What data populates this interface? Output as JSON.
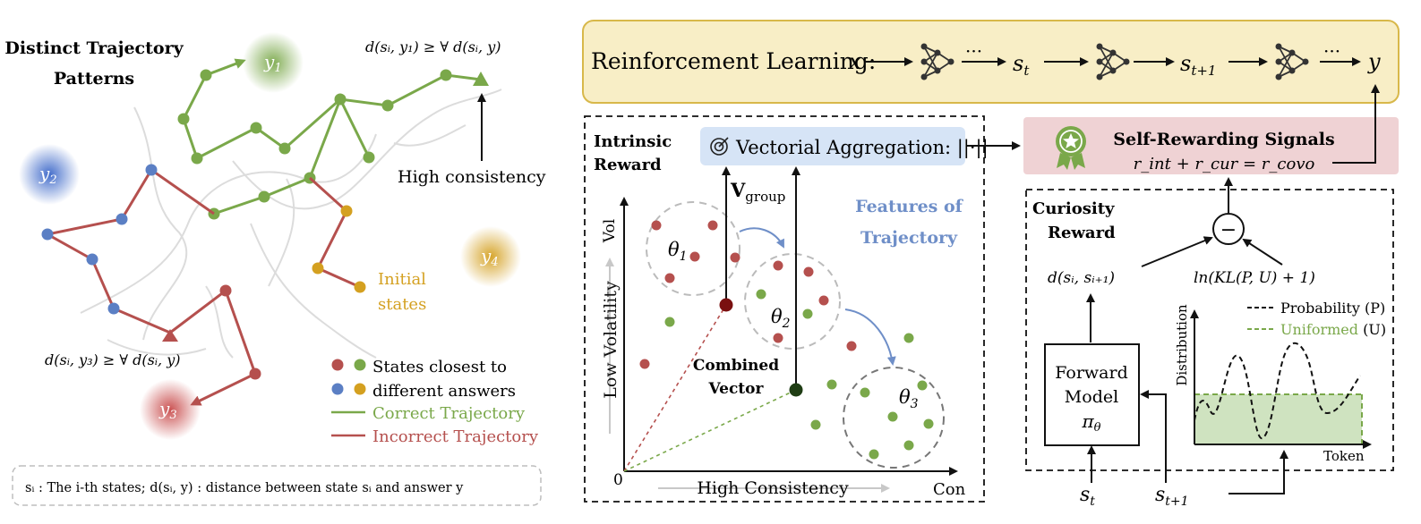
{
  "left_panel": {
    "title_line1": "Distinct Trajectory",
    "title_line2": "Patterns",
    "answers": {
      "y1": "y",
      "y1_sub": "1",
      "y2": "y",
      "y2_sub": "2",
      "y3": "y",
      "y3_sub": "3",
      "y4": "y",
      "y4_sub": "4"
    },
    "formula_top": "d(sᵢ, y₁) ≥ ∀ d(sᵢ, y)",
    "formula_bottom": "d(sᵢ, y₃) ≥ ∀ d(sᵢ, y)",
    "high_consistency": "High consistency",
    "initial_states_line1": "Initial",
    "initial_states_line2": "states",
    "legend": {
      "states_closest": "States closest to",
      "different_answers": "different answers",
      "correct": "Correct Trajectory",
      "incorrect": "Incorrect Trajectory"
    },
    "footnote": "sᵢ : The i-th states;  d(sᵢ, y) : distance between state sᵢ and answer y"
  },
  "rl_bar": {
    "label": "Reinforcement Learning:",
    "x": "x",
    "dots": "···",
    "st": "s",
    "st_sub": "t",
    "st1": "s",
    "st1_sub": "t+1",
    "y": "y"
  },
  "intrinsic": {
    "title_line1": "Intrinsic",
    "title_line2": "Reward",
    "aggregation": "Vectorial Aggregation: ||·||",
    "v_group": "V",
    "v_group_sub": "group",
    "features_line1": "Features of",
    "features_line2": "Trajectory",
    "theta1": "θ",
    "theta1_sub": "1",
    "theta2": "θ",
    "theta2_sub": "2",
    "theta3": "θ",
    "theta3_sub": "3",
    "combined_line1": "Combined",
    "combined_line2": "Vector",
    "y_axis_top": "Vol",
    "y_axis_label": "Low Volatility",
    "x_axis_label": "High Consistency",
    "x_axis_end": "Con",
    "origin": "0"
  },
  "self_reward": {
    "title": "Self-Rewarding Signals",
    "formula": "r_int + r_cur = r_covo"
  },
  "curiosity": {
    "title_line1": "Curiosity",
    "title_line2": "Reward",
    "minus": "−",
    "d_label": "d(sᵢ, sᵢ₊₁)",
    "ln_label": "ln(KL(P, U) + 1)",
    "forward_line1": "Forward",
    "forward_line2": "Model",
    "forward_line3": "π",
    "forward_line3_sub": "θ",
    "legend_p": "Probability (P)",
    "legend_u": "Uniformed",
    "legend_u_suffix": "(U)",
    "y_axis": "Distribution",
    "x_axis": "Token",
    "st": "s",
    "st_sub": "t",
    "st1": "s",
    "st1_sub": "t+1"
  },
  "colors": {
    "green": "#7aa84a",
    "red": "#b5504e",
    "blue": "#5b7fc4",
    "orange": "#d4a020",
    "dark_red": "#7a1010",
    "dark_green": "#1f3d14",
    "features_blue": "#6f8fc8",
    "rl_fill": "#f8eec6",
    "rl_stroke": "#d8b84a",
    "agg_fill": "#d6e4f6",
    "reward_fill": "#efd2d4",
    "uniform_fill": "#cfe3c0"
  }
}
